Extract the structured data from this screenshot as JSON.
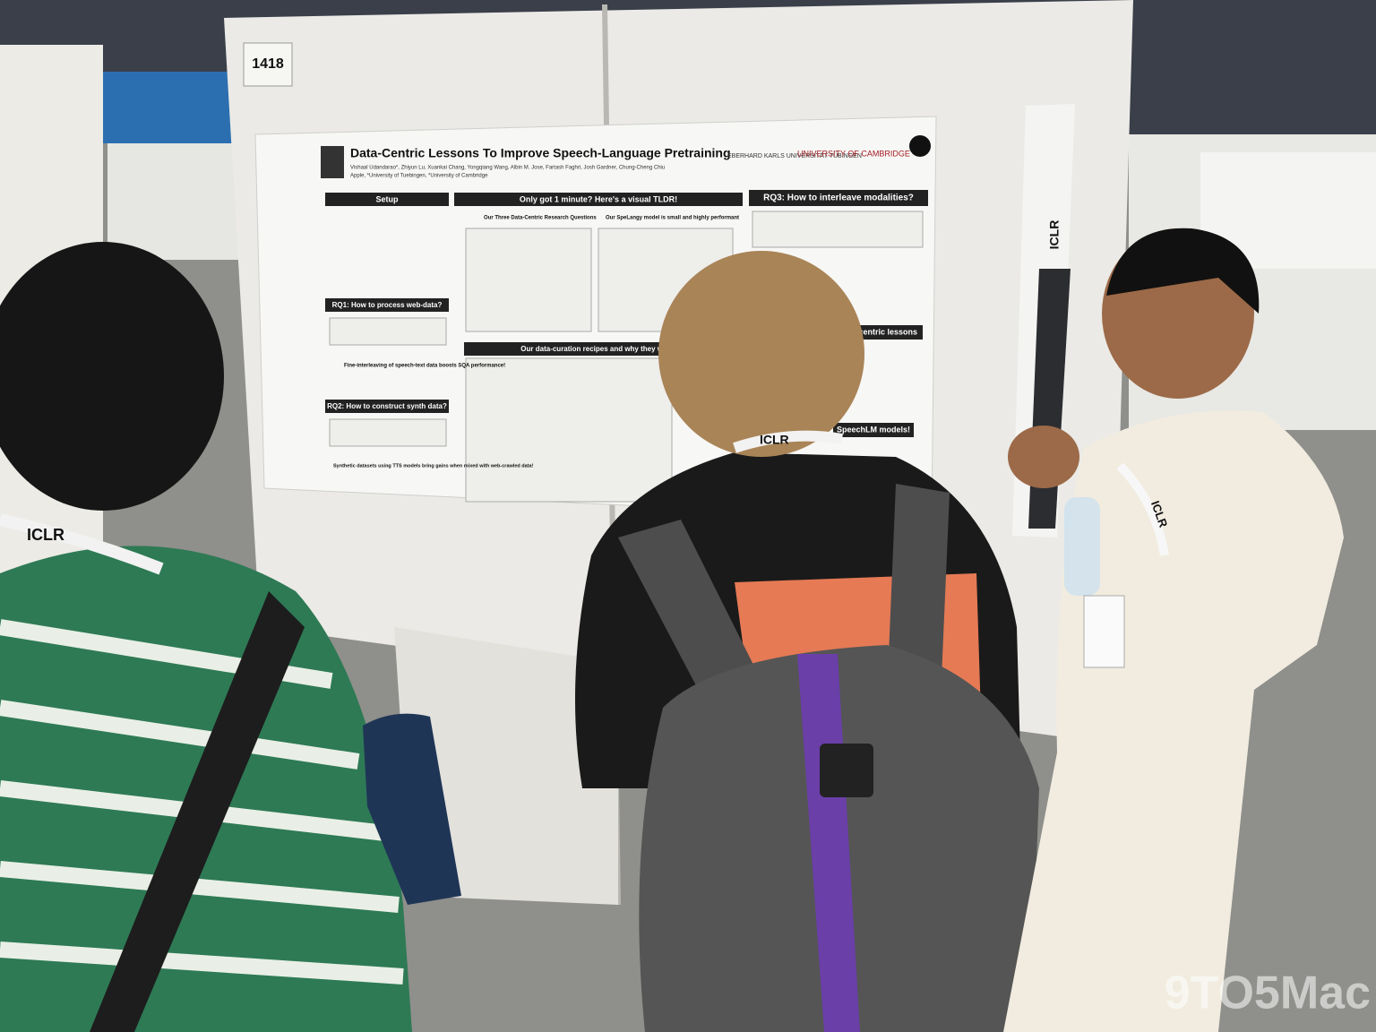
{
  "booth": {
    "number": "1418"
  },
  "poster": {
    "title": "Data-Centric Lessons To Improve Speech-Language Pretraining",
    "authors": "Vishaal Udandarao*, Zhiyun Lu, Xuankai Chang, Yongqiang Wang, Albin M. Jose, Fartash Faghri, Josh Gardner, Chung-Cheng Chiu",
    "affiliations": "Apple, *University of Tuebingen, *University of Cambridge",
    "logos": [
      "EBERHARD KARLS UNIVERSITÄT TÜBINGEN",
      "UNIVERSITY OF CAMBRIDGE"
    ],
    "sections": {
      "setup": "Setup",
      "tldr": "Only got 1 minute? Here's a visual TLDR!",
      "rq3": "RQ3: How to interleave modalities?",
      "rq1": "RQ1: How to process web-data?",
      "rq2": "RQ2: How to construct synth data?",
      "recipes": "Our data-curation recipes and why they w",
      "questions": "Our Three Data-Centric Research Questions",
      "model": "Our SpeLangy model is small and highly performant",
      "lessons": "data-centric lessons",
      "models": "SpeechLM models!"
    },
    "takeaways": [
      "Fine-interleaving of speech-text data boosts SQA performance!",
      "Synthetic datasets using TTS models bring gains when mixed with web-crawled data!"
    ],
    "side_banner": "ICLR"
  },
  "lanyards": [
    "ICLR",
    "ICLR",
    "ICLR"
  ],
  "watermark": "9TO5Mac"
}
